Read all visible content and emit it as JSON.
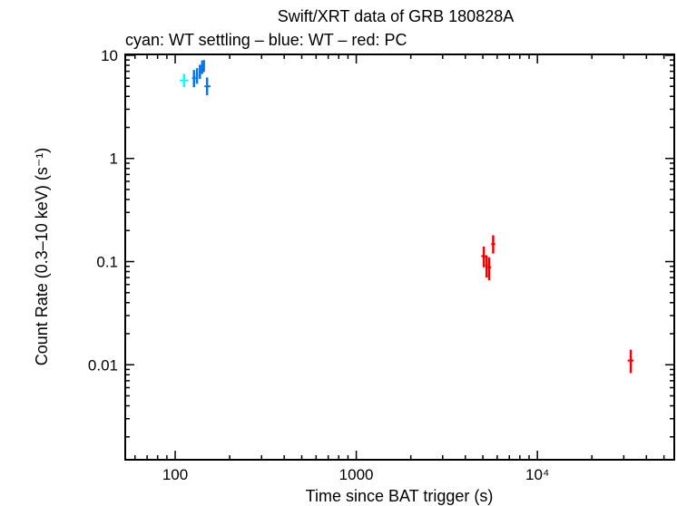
{
  "chart_data": {
    "type": "scatter",
    "title": "Swift/XRT data of GRB 180828A",
    "subtitle": "cyan: WT settling – blue: WT – red: PC",
    "xlabel": "Time since BAT trigger (s)",
    "ylabel": "Count Rate (0.3–10 keV) (s⁻¹)",
    "x_scale": "log",
    "y_scale": "log",
    "xlim": [
      53,
      57000
    ],
    "ylim": [
      0.0012,
      10.2
    ],
    "grid": false,
    "x_ticks": [
      {
        "value": 100,
        "label": "100"
      },
      {
        "value": 1000,
        "label": "1000"
      },
      {
        "value": 10000,
        "label": "10⁴"
      }
    ],
    "y_ticks": [
      {
        "value": 10,
        "label": "10"
      },
      {
        "value": 1,
        "label": "1"
      },
      {
        "value": 0.1,
        "label": "0.1"
      },
      {
        "value": 0.01,
        "label": "0.01"
      }
    ],
    "series": [
      {
        "name": "WT settling",
        "color": "#00ffff",
        "points": [
          {
            "x": 112,
            "xerr": [
              106,
              118
            ],
            "y": 5.7,
            "yerr": [
              4.9,
              6.6
            ]
          }
        ]
      },
      {
        "name": "WT",
        "color": "#0077ee",
        "points": [
          {
            "x": 127,
            "xerr": [
              124,
              130
            ],
            "y": 6.0,
            "yerr": [
              4.9,
              7.2
            ]
          },
          {
            "x": 132,
            "xerr": [
              130,
              134
            ],
            "y": 6.3,
            "yerr": [
              5.3,
              7.5
            ]
          },
          {
            "x": 137,
            "xerr": [
              135,
              139
            ],
            "y": 6.95,
            "yerr": [
              5.9,
              8.1
            ]
          },
          {
            "x": 141,
            "xerr": [
              139,
              143
            ],
            "y": 7.7,
            "yerr": [
              6.6,
              8.9
            ]
          },
          {
            "x": 144,
            "xerr": [
              143,
              146
            ],
            "y": 8.0,
            "yerr": [
              6.9,
              9.0
            ]
          },
          {
            "x": 150,
            "xerr": [
              145,
              157
            ],
            "y": 5.0,
            "yerr": [
              4.1,
              6.1
            ]
          }
        ]
      },
      {
        "name": "PC",
        "color": "#ee0000",
        "points": [
          {
            "x": 5060,
            "xerr": [
              4900,
              5200
            ],
            "y": 0.113,
            "yerr": [
              0.088,
              0.14
            ]
          },
          {
            "x": 5240,
            "xerr": [
              5150,
              5330
            ],
            "y": 0.092,
            "yerr": [
              0.07,
              0.115
            ]
          },
          {
            "x": 5420,
            "xerr": [
              5320,
              5560
            ],
            "y": 0.088,
            "yerr": [
              0.066,
              0.11
            ]
          },
          {
            "x": 5700,
            "xerr": [
              5560,
              5850
            ],
            "y": 0.148,
            "yerr": [
              0.12,
              0.18
            ]
          },
          {
            "x": 32800,
            "xerr": [
              31500,
              34000
            ],
            "y": 0.011,
            "yerr": [
              0.0083,
              0.014
            ]
          }
        ]
      }
    ]
  }
}
